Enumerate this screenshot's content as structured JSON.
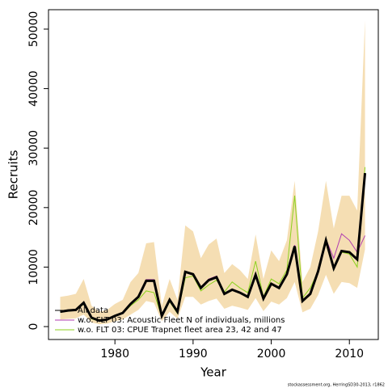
{
  "chart_data": {
    "type": "line",
    "x_label": "Year",
    "y_label": "Recruits",
    "footnote": "stockassessment.org, HerringSD30-2013, r1862",
    "x": [
      1973,
      1974,
      1975,
      1976,
      1977,
      1978,
      1979,
      1980,
      1981,
      1982,
      1983,
      1984,
      1985,
      1986,
      1987,
      1988,
      1989,
      1990,
      1991,
      1992,
      1993,
      1994,
      1995,
      1996,
      1997,
      1998,
      1999,
      2000,
      2001,
      2002,
      2003,
      2004,
      2005,
      2006,
      2007,
      2008,
      2009,
      2010,
      2011,
      2012
    ],
    "xlim": [
      1971.5,
      2013.7
    ],
    "xticks": [
      1980,
      1990,
      2000,
      2010
    ],
    "ylim": [
      -2170,
      53260
    ],
    "yticks": [
      0,
      10000,
      20000,
      30000,
      40000,
      50000
    ],
    "legend_position": "bottomleft",
    "band": {
      "color": "#f5deb3",
      "upper": [
        5000,
        5200,
        5500,
        8000,
        3500,
        2500,
        2800,
        3800,
        4500,
        7500,
        9000,
        14000,
        14200,
        3500,
        8000,
        4500,
        17000,
        16000,
        11500,
        13800,
        14800,
        9000,
        10500,
        9500,
        8000,
        15500,
        8000,
        12800,
        11000,
        14500,
        24500,
        7500,
        10000,
        16000,
        24500,
        16500,
        22000,
        22000,
        19500,
        51500
      ],
      "lower": [
        1200,
        1300,
        1400,
        2000,
        700,
        400,
        500,
        900,
        1200,
        2000,
        2800,
        4300,
        4000,
        900,
        2500,
        1300,
        5000,
        5000,
        3700,
        4300,
        4700,
        3000,
        3500,
        3200,
        2800,
        4800,
        2600,
        4200,
        3700,
        4800,
        7500,
        2400,
        3000,
        5300,
        8700,
        5500,
        7500,
        7300,
        6500,
        13000
      ]
    },
    "series": [
      {
        "name": "All data",
        "color": "#000000",
        "values": [
          2500,
          2700,
          2800,
          4000,
          1500,
          1000,
          1200,
          1800,
          2300,
          3800,
          5000,
          7700,
          7700,
          1800,
          4500,
          2500,
          9200,
          8800,
          6500,
          7800,
          8300,
          5500,
          6200,
          5700,
          5000,
          8700,
          4700,
          7200,
          6500,
          8800,
          13500,
          4300,
          5500,
          9300,
          14500,
          9800,
          12700,
          12500,
          11300,
          25800
        ]
      },
      {
        "name": "w.o. FLT 03: Acoustic Fleet   N of individuals, millions",
        "color": "#b03cb0",
        "values": [
          2600,
          2800,
          2900,
          4100,
          1600,
          1000,
          1200,
          1800,
          2400,
          3900,
          5100,
          7900,
          7900,
          1900,
          4600,
          2600,
          9300,
          8900,
          6700,
          8000,
          8500,
          5600,
          6300,
          5800,
          5100,
          8800,
          4800,
          7300,
          6600,
          8900,
          13700,
          4300,
          5600,
          9400,
          14700,
          11500,
          15600,
          14500,
          12500,
          15300
        ]
      },
      {
        "name": "w.o. FLT 03: CPUE Trapnet fleet area 23, 42 and 47",
        "color": "#8cd21e",
        "values": [
          2400,
          2600,
          2700,
          3800,
          1300,
          900,
          1100,
          1700,
          2200,
          3500,
          4500,
          6000,
          5700,
          1600,
          4200,
          2200,
          8200,
          8500,
          6000,
          7000,
          7800,
          5800,
          7500,
          6500,
          5700,
          11000,
          5000,
          8000,
          7200,
          9500,
          22000,
          4800,
          6500,
          9300,
          14500,
          10000,
          12500,
          12200,
          10000,
          26800
        ]
      }
    ]
  }
}
